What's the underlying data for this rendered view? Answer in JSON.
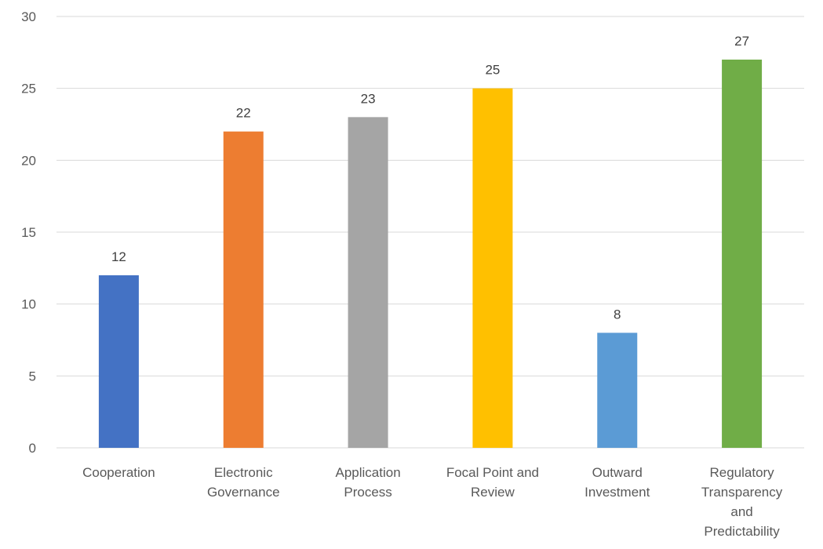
{
  "chart_data": {
    "type": "bar",
    "title": "",
    "xlabel": "",
    "ylabel": "",
    "categories": [
      "Cooperation",
      "Electronic Governance",
      "Application Process",
      "Focal Point and Review",
      "Outward Investment",
      "Regulatory Transparency and Predictability"
    ],
    "category_lines": [
      [
        "Cooperation"
      ],
      [
        "Electronic",
        "Governance"
      ],
      [
        "Application",
        "Process"
      ],
      [
        "Focal Point and",
        "Review"
      ],
      [
        "Outward",
        "Investment"
      ],
      [
        "Regulatory",
        "Transparency",
        "and",
        "Predictability"
      ]
    ],
    "values": [
      12,
      22,
      23,
      25,
      8,
      27
    ],
    "colors": [
      "#4472c4",
      "#ed7d31",
      "#a5a5a5",
      "#ffc000",
      "#5b9bd5",
      "#70ad47"
    ],
    "yticks": [
      0,
      5,
      10,
      15,
      20,
      25,
      30
    ],
    "ylim": [
      0,
      30
    ],
    "grid": true,
    "legend": "none",
    "data_labels": true
  }
}
